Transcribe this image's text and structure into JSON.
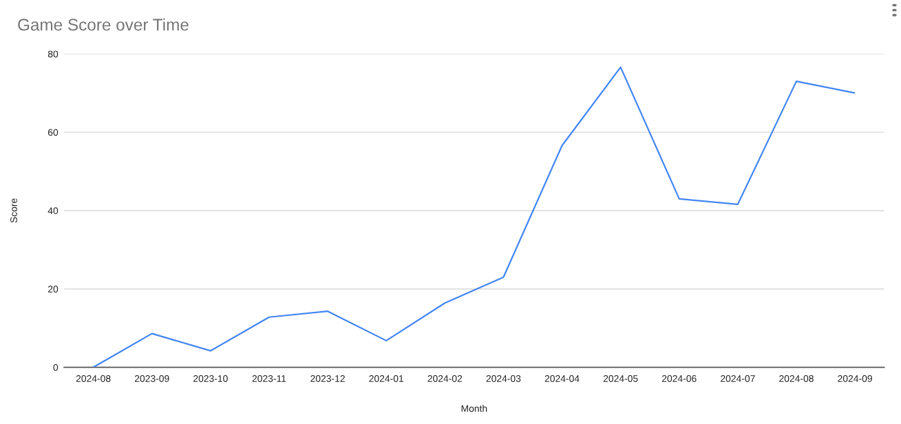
{
  "chart_data": {
    "type": "line",
    "title": "Game Score over Time",
    "xlabel": "Month",
    "ylabel": "Score",
    "categories": [
      "2024-08",
      "2023-09",
      "2023-10",
      "2023-11",
      "2023-12",
      "2024-01",
      "2024-02",
      "2024-03",
      "2024-04",
      "2024-05",
      "2024-06",
      "2024-07",
      "2024-08",
      "2024-09"
    ],
    "series": [
      {
        "color": "#4285f4",
        "values": [
          0,
          8.6,
          4.2,
          12.8,
          14.3,
          6.8,
          16.4,
          23.0,
          56.6,
          76.6,
          43.0,
          41.6,
          73.0,
          70.0
        ]
      }
    ],
    "ylim": [
      0,
      80
    ],
    "yticks": [
      0,
      20,
      40,
      60,
      80
    ],
    "grid": "y",
    "marker": "none",
    "line_style": "solid"
  }
}
